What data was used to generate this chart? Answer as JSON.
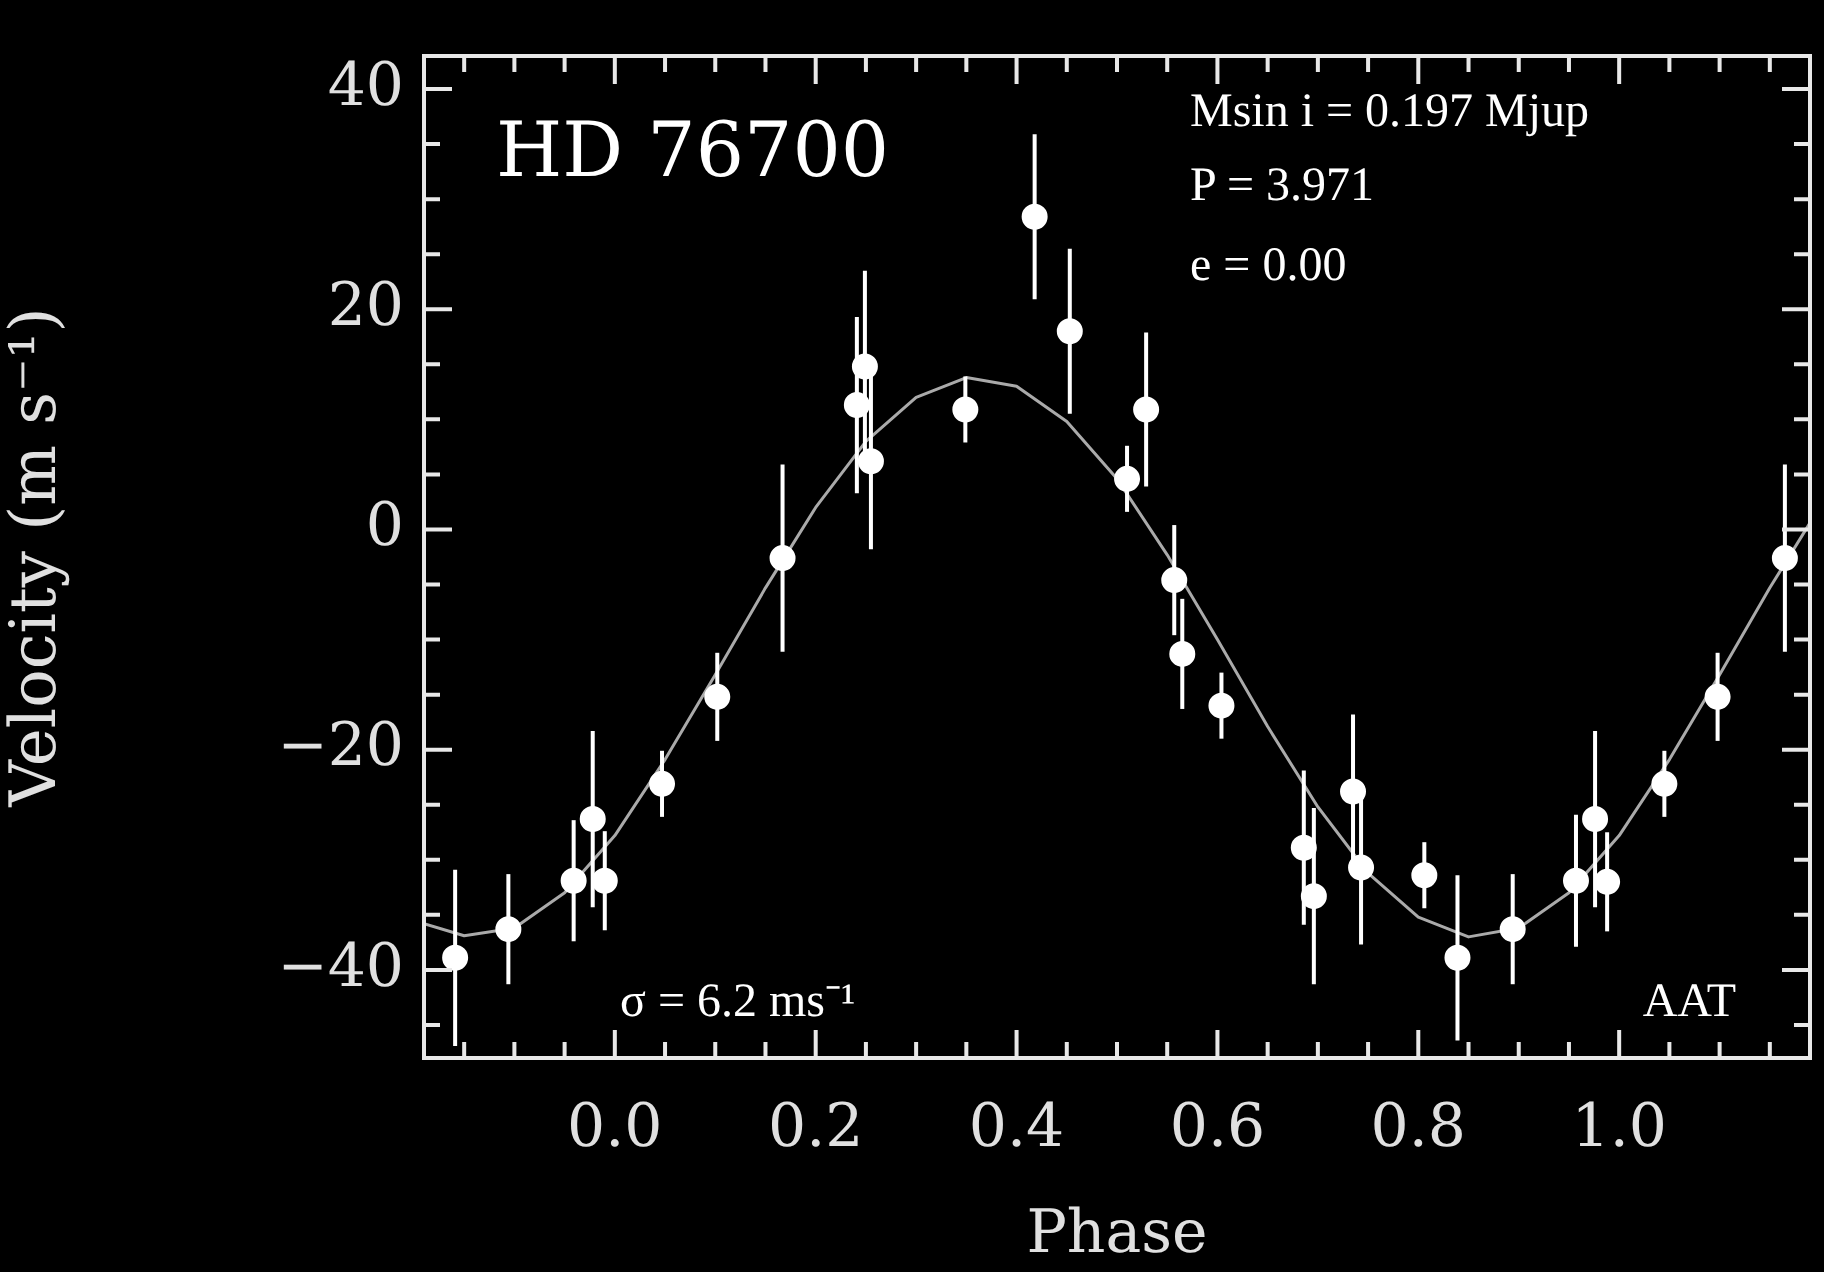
{
  "chart_data": {
    "type": "scatter",
    "xlabel": "Phase",
    "ylabel": "Velocity (m s⁻¹)",
    "annotations": [
      "HD 76700",
      "Msin i = 0.197 Mjup",
      "P = 3.971",
      "e = 0.00",
      "σ = 6.2 ms⁻¹",
      "AAT"
    ],
    "xlim": [
      -0.19,
      1.19
    ],
    "ylim": [
      -48,
      43
    ],
    "xticks": [
      {
        "value": -0.15,
        "label": null
      },
      {
        "value": -0.1,
        "label": null
      },
      {
        "value": -0.05,
        "label": null
      },
      {
        "value": 0,
        "label": "0.0"
      },
      {
        "value": 0.05,
        "label": null
      },
      {
        "value": 0.1,
        "label": null
      },
      {
        "value": 0.15,
        "label": null
      },
      {
        "value": 0.2,
        "label": "0.2"
      },
      {
        "value": 0.25,
        "label": null
      },
      {
        "value": 0.3,
        "label": null
      },
      {
        "value": 0.35,
        "label": null
      },
      {
        "value": 0.4,
        "label": "0.4"
      },
      {
        "value": 0.45,
        "label": null
      },
      {
        "value": 0.5,
        "label": null
      },
      {
        "value": 0.55,
        "label": null
      },
      {
        "value": 0.6,
        "label": "0.6"
      },
      {
        "value": 0.65,
        "label": null
      },
      {
        "value": 0.7,
        "label": null
      },
      {
        "value": 0.75,
        "label": null
      },
      {
        "value": 0.8,
        "label": "0.8"
      },
      {
        "value": 0.85,
        "label": null
      },
      {
        "value": 0.9,
        "label": null
      },
      {
        "value": 0.95,
        "label": null
      },
      {
        "value": 1,
        "label": "1.0"
      },
      {
        "value": 1.05,
        "label": null
      },
      {
        "value": 1.1,
        "label": null
      },
      {
        "value": 1.15,
        "label": null
      }
    ],
    "yticks": [
      {
        "value": -45,
        "label": null
      },
      {
        "value": -40,
        "label": "−40"
      },
      {
        "value": -35,
        "label": null
      },
      {
        "value": -30,
        "label": null
      },
      {
        "value": -25,
        "label": null
      },
      {
        "value": -20,
        "label": "−20"
      },
      {
        "value": -15,
        "label": null
      },
      {
        "value": -10,
        "label": null
      },
      {
        "value": -5,
        "label": null
      },
      {
        "value": 0,
        "label": "0"
      },
      {
        "value": 5,
        "label": null
      },
      {
        "value": 10,
        "label": null
      },
      {
        "value": 15,
        "label": null
      },
      {
        "value": 20,
        "label": "20"
      },
      {
        "value": 25,
        "label": null
      },
      {
        "value": 30,
        "label": null
      },
      {
        "value": 35,
        "label": null
      },
      {
        "value": 40,
        "label": "40"
      }
    ],
    "marker": "circle",
    "series": [
      {
        "color": "#ffffff",
        "x": [
          -0.159,
          -0.106,
          -0.041,
          -0.022,
          -0.01,
          0.047,
          0.102,
          0.167,
          0.241,
          0.249,
          0.255,
          0.349,
          0.418,
          0.453,
          0.51,
          0.529,
          0.557,
          0.565,
          0.604,
          0.686,
          0.696,
          0.735,
          0.743,
          0.806,
          0.839,
          0.894,
          0.957,
          0.976,
          0.988,
          1.045,
          1.098,
          1.165
        ],
        "values": [
          -38.9,
          -36.3,
          -31.9,
          -26.3,
          -31.9,
          -23.1,
          -15.2,
          -2.6,
          11.3,
          14.8,
          6.2,
          10.9,
          28.4,
          18,
          4.6,
          10.9,
          -4.6,
          -11.3,
          -16,
          -28.9,
          -33.3,
          -23.8,
          -30.7,
          -31.4,
          -38.9,
          -36.3,
          -31.9,
          -26.3,
          -32,
          -23.1,
          -15.2,
          -2.6
        ],
        "errors": [
          8,
          5,
          5.5,
          8,
          4.5,
          3,
          4,
          8.5,
          8,
          8.7,
          8,
          3,
          7.5,
          7.5,
          3,
          7,
          5,
          5,
          3,
          7,
          8,
          7,
          7,
          3,
          7.5,
          5,
          6,
          8,
          4.5,
          3,
          4,
          8.5
        ]
      },
      {
        "type": "line",
        "color": "#aaaaaa",
        "marker": "none",
        "x": [
          -0.19,
          -0.15,
          -0.1,
          -0.05,
          0,
          0.05,
          0.1,
          0.15,
          0.2,
          0.25,
          0.3,
          0.35,
          0.4,
          0.45,
          0.5,
          0.55,
          0.6,
          0.65,
          0.7,
          0.75,
          0.8,
          0.85,
          0.9,
          0.95,
          1,
          1.05,
          1.1,
          1.15,
          1.19
        ],
        "values": [
          -35.8,
          -36.9,
          -36.2,
          -33,
          -27.8,
          -20.9,
          -13.2,
          -5.3,
          2,
          8,
          12,
          13.8,
          13,
          9.8,
          4.6,
          -2.3,
          -10,
          -17.9,
          -25.2,
          -31.2,
          -35.2,
          -37,
          -36.2,
          -33,
          -27.8,
          -20.9,
          -13.2,
          -5.3,
          0.6
        ]
      }
    ]
  }
}
